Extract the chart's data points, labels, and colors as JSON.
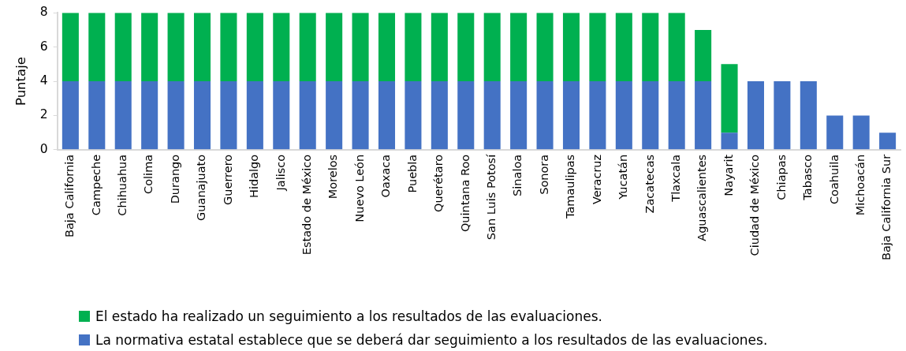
{
  "chart_data": {
    "type": "bar",
    "stacked": true,
    "ylabel": "Puntaje",
    "categories": [
      "Baja California",
      "Campeche",
      "Chihuahua",
      "Colima",
      "Durango",
      "Guanajuato",
      "Guerrero",
      "Hidalgo",
      "Jalisco",
      "Estado de México",
      "Morelos",
      "Nuevo León",
      "Oaxaca",
      "Puebla",
      "Querétaro",
      "Quintana Roo",
      "San Luis Potosí",
      "Sinaloa",
      "Sonora",
      "Tamaulipas",
      "Veracruz",
      "Yucatán",
      "Zacatecas",
      "Tlaxcala",
      "Aguascalientes",
      "Nayarit",
      "Ciudad de México",
      "Chiapas",
      "Tabasco",
      "Coahuila",
      "Michoacán",
      "Baja California Sur"
    ],
    "series": [
      {
        "name": "La normativa estatal establece que se deberá dar seguimiento a los resultados de las evaluaciones.",
        "color": "#4472c4",
        "values": [
          4,
          4,
          4,
          4,
          4,
          4,
          4,
          4,
          4,
          4,
          4,
          4,
          4,
          4,
          4,
          4,
          4,
          4,
          4,
          4,
          4,
          4,
          4,
          4,
          4,
          1,
          4,
          4,
          4,
          2,
          2,
          1
        ]
      },
      {
        "name": "El estado ha realizado un seguimiento a los resultados de las evaluaciones.",
        "color": "#00b050",
        "values": [
          4,
          4,
          4,
          4,
          4,
          4,
          4,
          4,
          4,
          4,
          4,
          4,
          4,
          4,
          4,
          4,
          4,
          4,
          4,
          4,
          4,
          4,
          4,
          4,
          3,
          4,
          0,
          0,
          0,
          0,
          0,
          0
        ]
      }
    ],
    "ylim": [
      0,
      8
    ],
    "yticks": [
      0,
      2,
      4,
      6,
      8
    ],
    "legend": "bottom"
  }
}
